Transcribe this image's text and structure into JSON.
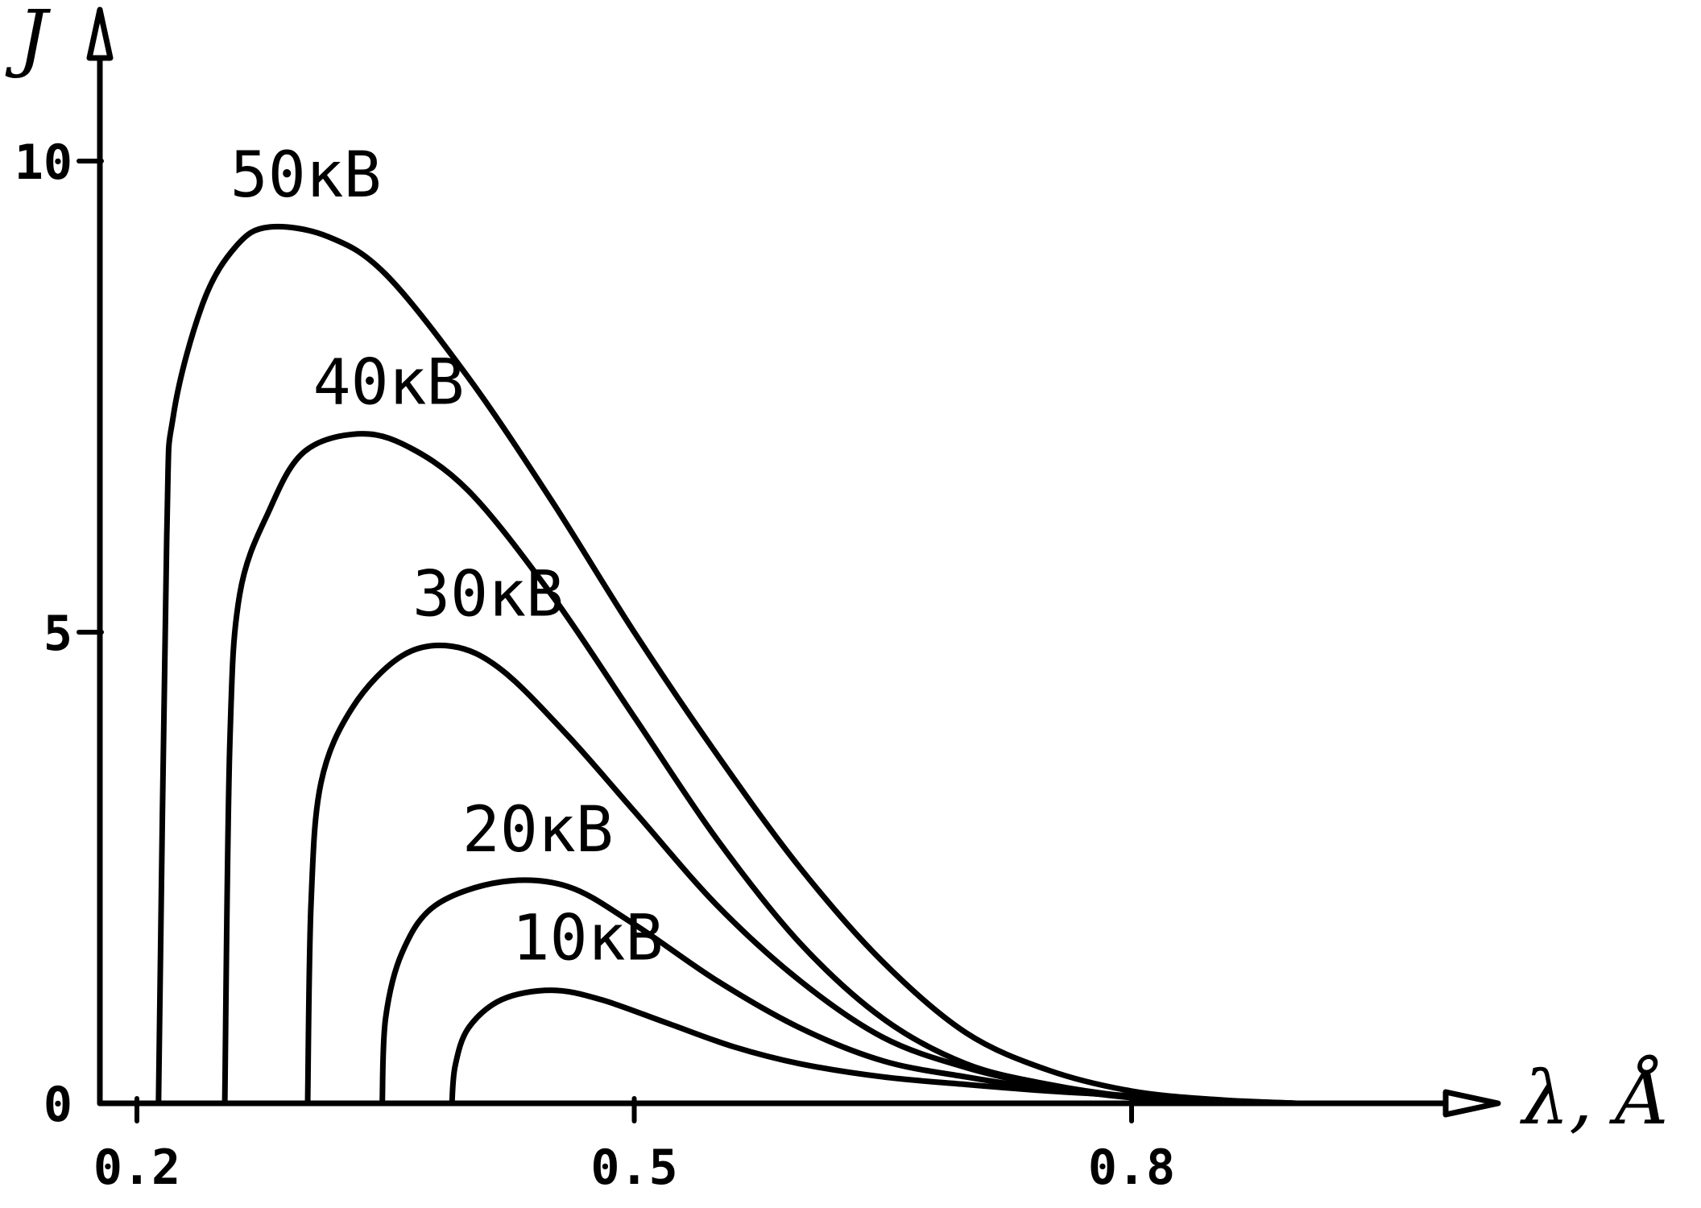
{
  "chart_data": {
    "type": "line",
    "title": "",
    "xlabel": "λ, Å",
    "ylabel": "J",
    "xlim": [
      0.18,
      1.0
    ],
    "ylim": [
      0,
      12
    ],
    "x_ticks": [
      {
        "value": 0.2,
        "label": "0.2"
      },
      {
        "value": 0.5,
        "label": "0.5"
      },
      {
        "value": 0.8,
        "label": "0.8"
      }
    ],
    "y_ticks": [
      {
        "value": 0,
        "label": "0"
      },
      {
        "value": 5,
        "label": "5"
      },
      {
        "value": 10,
        "label": "10"
      }
    ],
    "grid": false,
    "legend": "none",
    "series": [
      {
        "name": "50кВ",
        "points": [
          [
            0.213,
            0.0
          ],
          [
            0.218,
            6.0
          ],
          [
            0.222,
            7.3
          ],
          [
            0.24,
            8.5
          ],
          [
            0.26,
            9.1
          ],
          [
            0.28,
            9.3
          ],
          [
            0.315,
            9.2
          ],
          [
            0.35,
            8.8
          ],
          [
            0.4,
            7.7
          ],
          [
            0.45,
            6.4
          ],
          [
            0.5,
            5.0
          ],
          [
            0.55,
            3.7
          ],
          [
            0.6,
            2.5
          ],
          [
            0.65,
            1.5
          ],
          [
            0.7,
            0.75
          ],
          [
            0.75,
            0.35
          ],
          [
            0.8,
            0.13
          ],
          [
            0.85,
            0.04
          ],
          [
            0.9,
            0.0
          ]
        ]
      },
      {
        "name": "40кВ",
        "points": [
          [
            0.253,
            0.0
          ],
          [
            0.256,
            3.8
          ],
          [
            0.262,
            5.4
          ],
          [
            0.28,
            6.3
          ],
          [
            0.3,
            6.9
          ],
          [
            0.33,
            7.1
          ],
          [
            0.36,
            7.0
          ],
          [
            0.4,
            6.5
          ],
          [
            0.45,
            5.4
          ],
          [
            0.5,
            4.1
          ],
          [
            0.55,
            2.8
          ],
          [
            0.6,
            1.7
          ],
          [
            0.65,
            0.9
          ],
          [
            0.7,
            0.42
          ],
          [
            0.75,
            0.2
          ],
          [
            0.8,
            0.07
          ],
          [
            0.85,
            0.02
          ],
          [
            0.9,
            0.0
          ]
        ]
      },
      {
        "name": "30кВ",
        "points": [
          [
            0.303,
            0.0
          ],
          [
            0.305,
            2.1
          ],
          [
            0.311,
            3.4
          ],
          [
            0.33,
            4.2
          ],
          [
            0.36,
            4.75
          ],
          [
            0.39,
            4.85
          ],
          [
            0.42,
            4.6
          ],
          [
            0.46,
            3.9
          ],
          [
            0.5,
            3.1
          ],
          [
            0.55,
            2.1
          ],
          [
            0.6,
            1.3
          ],
          [
            0.65,
            0.7
          ],
          [
            0.7,
            0.38
          ],
          [
            0.75,
            0.18
          ],
          [
            0.8,
            0.06
          ],
          [
            0.85,
            0.02
          ],
          [
            0.88,
            0.0
          ]
        ]
      },
      {
        "name": "20кВ",
        "points": [
          [
            0.348,
            0.0
          ],
          [
            0.35,
            0.9
          ],
          [
            0.36,
            1.6
          ],
          [
            0.38,
            2.1
          ],
          [
            0.42,
            2.35
          ],
          [
            0.46,
            2.3
          ],
          [
            0.5,
            1.9
          ],
          [
            0.55,
            1.3
          ],
          [
            0.6,
            0.8
          ],
          [
            0.65,
            0.45
          ],
          [
            0.7,
            0.28
          ],
          [
            0.75,
            0.15
          ],
          [
            0.8,
            0.07
          ],
          [
            0.85,
            0.02
          ],
          [
            0.9,
            0.0
          ]
        ]
      },
      {
        "name": "10кВ",
        "points": [
          [
            0.39,
            0.0
          ],
          [
            0.392,
            0.4
          ],
          [
            0.4,
            0.8
          ],
          [
            0.42,
            1.1
          ],
          [
            0.45,
            1.2
          ],
          [
            0.48,
            1.1
          ],
          [
            0.52,
            0.85
          ],
          [
            0.56,
            0.6
          ],
          [
            0.6,
            0.42
          ],
          [
            0.65,
            0.28
          ],
          [
            0.7,
            0.2
          ],
          [
            0.75,
            0.13
          ],
          [
            0.8,
            0.08
          ],
          [
            0.85,
            0.03
          ],
          [
            0.9,
            0.0
          ]
        ]
      }
    ]
  }
}
